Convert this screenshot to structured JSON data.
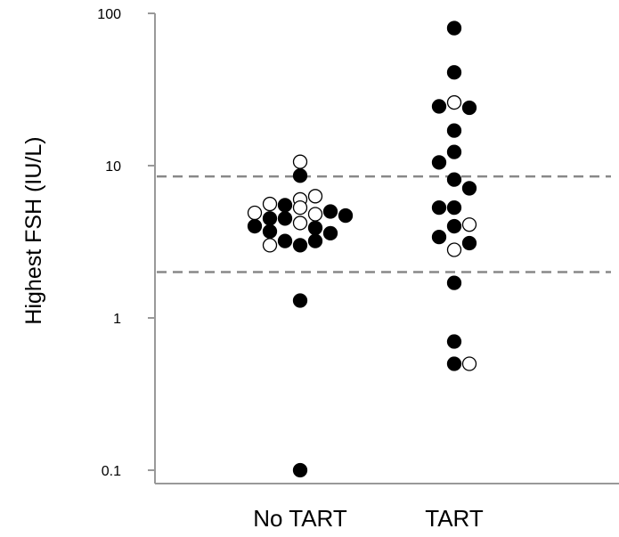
{
  "chart_data": {
    "type": "scatter",
    "title": "",
    "xlabel": "",
    "ylabel": "Highest FSH (IU/L)",
    "yscale": "log",
    "ylim": [
      0.1,
      100
    ],
    "yticks": [
      {
        "value": 0.1,
        "label": "0.1"
      },
      {
        "value": 1,
        "label": "1"
      },
      {
        "value": 10,
        "label": "10"
      },
      {
        "value": 100,
        "label": "100"
      }
    ],
    "categories": [
      "No TART",
      "TART"
    ],
    "reference_lines": [
      8.5,
      2.0
    ],
    "grid": false,
    "marker_colors": {
      "filled": "#000000",
      "open": "#ffffff"
    },
    "points": [
      {
        "group": "No TART",
        "slot": 0,
        "value": 10.6,
        "filled": false
      },
      {
        "group": "No TART",
        "slot": 0,
        "value": 8.6,
        "filled": true
      },
      {
        "group": "No TART",
        "slot": 1,
        "value": 6.3,
        "filled": false
      },
      {
        "group": "No TART",
        "slot": 0,
        "value": 6.0,
        "filled": false
      },
      {
        "group": "No TART",
        "slot": -2,
        "value": 5.6,
        "filled": false
      },
      {
        "group": "No TART",
        "slot": -1,
        "value": 5.5,
        "filled": true
      },
      {
        "group": "No TART",
        "slot": 0,
        "value": 5.3,
        "filled": false
      },
      {
        "group": "No TART",
        "slot": -3,
        "value": 4.9,
        "filled": false
      },
      {
        "group": "No TART",
        "slot": 2,
        "value": 5.0,
        "filled": true
      },
      {
        "group": "No TART",
        "slot": 1,
        "value": 4.8,
        "filled": false
      },
      {
        "group": "No TART",
        "slot": 3,
        "value": 4.7,
        "filled": true
      },
      {
        "group": "No TART",
        "slot": -2,
        "value": 4.5,
        "filled": true
      },
      {
        "group": "No TART",
        "slot": -1,
        "value": 4.5,
        "filled": true
      },
      {
        "group": "No TART",
        "slot": 0,
        "value": 4.2,
        "filled": false
      },
      {
        "group": "No TART",
        "slot": -3,
        "value": 4.0,
        "filled": true
      },
      {
        "group": "No TART",
        "slot": 1,
        "value": 3.9,
        "filled": true
      },
      {
        "group": "No TART",
        "slot": -2,
        "value": 3.7,
        "filled": true
      },
      {
        "group": "No TART",
        "slot": 2,
        "value": 3.6,
        "filled": true
      },
      {
        "group": "No TART",
        "slot": -1,
        "value": 3.2,
        "filled": true
      },
      {
        "group": "No TART",
        "slot": 1,
        "value": 3.2,
        "filled": true
      },
      {
        "group": "No TART",
        "slot": -2,
        "value": 3.0,
        "filled": false
      },
      {
        "group": "No TART",
        "slot": 0,
        "value": 3.0,
        "filled": true
      },
      {
        "group": "No TART",
        "slot": 0,
        "value": 1.3,
        "filled": true
      },
      {
        "group": "No TART",
        "slot": 0,
        "value": 0.1,
        "filled": true
      },
      {
        "group": "TART",
        "slot": 0,
        "value": 80,
        "filled": true
      },
      {
        "group": "TART",
        "slot": 0,
        "value": 41,
        "filled": true
      },
      {
        "group": "TART",
        "slot": 0,
        "value": 26,
        "filled": false
      },
      {
        "group": "TART",
        "slot": -1,
        "value": 24.5,
        "filled": true
      },
      {
        "group": "TART",
        "slot": 1,
        "value": 24,
        "filled": true
      },
      {
        "group": "TART",
        "slot": 0,
        "value": 17,
        "filled": true
      },
      {
        "group": "TART",
        "slot": 0,
        "value": 12.3,
        "filled": true
      },
      {
        "group": "TART",
        "slot": -1,
        "value": 10.5,
        "filled": true
      },
      {
        "group": "TART",
        "slot": 0,
        "value": 8.1,
        "filled": true
      },
      {
        "group": "TART",
        "slot": 1,
        "value": 7.1,
        "filled": true
      },
      {
        "group": "TART",
        "slot": -1,
        "value": 5.3,
        "filled": true
      },
      {
        "group": "TART",
        "slot": 0,
        "value": 5.3,
        "filled": true
      },
      {
        "group": "TART",
        "slot": 1,
        "value": 4.1,
        "filled": false
      },
      {
        "group": "TART",
        "slot": 0,
        "value": 4.0,
        "filled": true
      },
      {
        "group": "TART",
        "slot": -1,
        "value": 3.4,
        "filled": true
      },
      {
        "group": "TART",
        "slot": 1,
        "value": 3.1,
        "filled": true
      },
      {
        "group": "TART",
        "slot": 0,
        "value": 2.8,
        "filled": false
      },
      {
        "group": "TART",
        "slot": 0,
        "value": 1.7,
        "filled": true
      },
      {
        "group": "TART",
        "slot": 0,
        "value": 0.7,
        "filled": true
      },
      {
        "group": "TART",
        "slot": 0,
        "value": 0.5,
        "filled": true
      },
      {
        "group": "TART",
        "slot": 1,
        "value": 0.5,
        "filled": false
      }
    ]
  }
}
